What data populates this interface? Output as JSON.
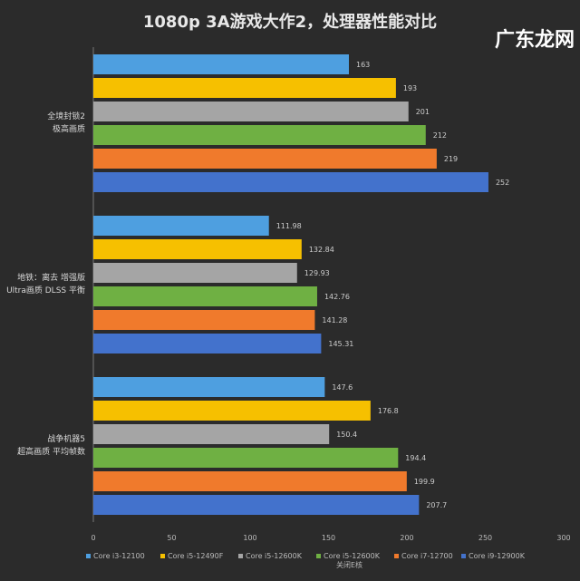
{
  "chart_data": {
    "type": "bar",
    "orientation": "horizontal",
    "title": "1080p 3A游戏大作2，处理器性能对比",
    "categories": [
      "全境封锁2\n极高画质",
      "地铁：离去 增强版\nUltra画质 DLSS 平衡",
      "战争机器5\n超高画质 平均帧数"
    ],
    "series": [
      {
        "name": "Core i3-12100",
        "color": "#4e9fe0",
        "values": [
          163,
          111.98,
          147.6
        ]
      },
      {
        "name": "Core i5-12490F",
        "color": "#f6c000",
        "values": [
          193,
          132.84,
          176.8
        ]
      },
      {
        "name": "Core i5-12600K",
        "color": "#a5a5a5",
        "values": [
          201,
          129.93,
          150.4
        ]
      },
      {
        "name": "Core i5-12600K 关闭E核",
        "color": "#6fb043",
        "values": [
          212,
          142.76,
          194.4
        ]
      },
      {
        "name": "Core i7-12700",
        "color": "#f07a2c",
        "values": [
          219,
          141.28,
          199.9
        ]
      },
      {
        "name": "Core i9-12900K",
        "color": "#4372cc",
        "values": [
          252,
          145.31,
          207.7
        ]
      }
    ],
    "data_labels": [
      [
        "163",
        "193",
        "201",
        "212",
        "219",
        "252"
      ],
      [
        "111.98",
        "132.84",
        "129.93",
        "142.76",
        "141.28",
        "145.31"
      ],
      [
        "147.6",
        "176.8",
        "150.4",
        "194.4",
        "199.9",
        "207.7"
      ]
    ],
    "xlim": [
      0,
      300
    ],
    "xticks": [
      "0",
      "50",
      "100",
      "150",
      "200",
      "250",
      "300"
    ],
    "grid": false,
    "legend": "bottom"
  },
  "legend_labels": [
    "Core i3-12100",
    "Core i5-12490F",
    "Core i5-12600K",
    "Core i5-12600K",
    "Core i7-12700",
    "Core i9-12900K"
  ],
  "legend_sub": "关闭E核",
  "watermark": "广东龙网"
}
